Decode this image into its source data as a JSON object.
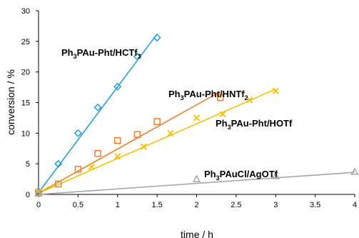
{
  "chart_data": {
    "type": "scatter",
    "title": "",
    "xlabel": "time / h",
    "ylabel": "conversion / %",
    "xlim": [
      0,
      4
    ],
    "ylim": [
      0,
      30
    ],
    "x_ticks": [
      "0",
      "0.5",
      "1",
      "1.5",
      "2",
      "2.5",
      "3",
      "3.5",
      "4"
    ],
    "y_ticks": [
      "0",
      "5",
      "10",
      "15",
      "20",
      "25",
      "30"
    ],
    "grid": false,
    "series": [
      {
        "name": "Ph3PAu-Pht/HCTf3",
        "label_parts": [
          {
            "t": "Ph",
            "sub": false
          },
          {
            "t": "3",
            "sub": true
          },
          {
            "t": "PAu-Pht/HCTf",
            "sub": false
          },
          {
            "t": "3",
            "sub": true
          }
        ],
        "color": "#1fa0d8",
        "marker": "diamond",
        "x": [
          0,
          0.25,
          0.5,
          0.75,
          1.0,
          1.25,
          1.5
        ],
        "y": [
          0.5,
          5.0,
          10.0,
          14.2,
          17.6,
          22.5,
          25.6
        ],
        "fit": {
          "x": [
            0,
            1.5
          ],
          "y": [
            0.3,
            26.2
          ]
        }
      },
      {
        "name": "Ph3PAu-Pht/HNTf2",
        "label_parts": [
          {
            "t": "Ph",
            "sub": false
          },
          {
            "t": "3",
            "sub": true
          },
          {
            "t": "PAu-Pht/HNTf",
            "sub": false
          },
          {
            "t": "2",
            "sub": true
          }
        ],
        "color": "#f07d2c",
        "marker": "square",
        "x": [
          0,
          0.25,
          0.5,
          0.75,
          1.0,
          1.25,
          1.5,
          2.3
        ],
        "y": [
          0.2,
          1.7,
          4.1,
          6.7,
          8.8,
          9.8,
          11.9,
          15.8
        ],
        "fit": {
          "x": [
            0,
            2.3
          ],
          "y": [
            0.2,
            16.8
          ]
        }
      },
      {
        "name": "Ph3PAu-Pht/HOTf",
        "label_parts": [
          {
            "t": "Ph",
            "sub": false
          },
          {
            "t": "3",
            "sub": true
          },
          {
            "t": "PAu-Pht/HOTf",
            "sub": false
          }
        ],
        "color": "#f5c000",
        "marker": "cross",
        "x": [
          0,
          0.67,
          1.0,
          1.33,
          1.67,
          2.0,
          2.33,
          2.67,
          3.0
        ],
        "y": [
          0.5,
          4.5,
          6.2,
          7.8,
          10.0,
          12.5,
          13.1,
          15.4,
          16.9
        ],
        "fit": {
          "x": [
            0,
            3.0
          ],
          "y": [
            0.2,
            17.2
          ]
        }
      },
      {
        "name": "Ph3PAuCl/AgOTf",
        "label_parts": [
          {
            "t": "Ph",
            "sub": false
          },
          {
            "t": "3",
            "sub": true
          },
          {
            "t": "PAuCl/AgOTf",
            "sub": false
          }
        ],
        "color": "#a6a6a6",
        "marker": "triangle",
        "x": [
          0,
          2.0,
          3.0,
          4.0
        ],
        "y": [
          0.2,
          2.5,
          3.0,
          3.7
        ],
        "fit": {
          "x": [
            0,
            4.0
          ],
          "y": [
            0.0,
            3.6
          ]
        }
      }
    ]
  }
}
